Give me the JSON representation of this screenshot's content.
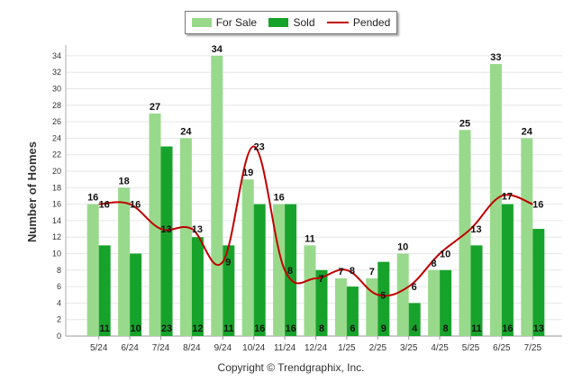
{
  "chart_data": {
    "type": "bar",
    "ylabel": "Number of Homes",
    "xlabel": "",
    "ylim": [
      0,
      35
    ],
    "yticks": [
      0,
      2,
      4,
      6,
      8,
      10,
      12,
      14,
      16,
      18,
      20,
      22,
      24,
      26,
      28,
      30,
      32,
      34
    ],
    "grid": true,
    "legend_position": "top-center",
    "categories": [
      "5/24",
      "6/24",
      "7/24",
      "8/24",
      "9/24",
      "10/24",
      "11/24",
      "12/24",
      "1/25",
      "2/25",
      "3/25",
      "4/25",
      "5/25",
      "6/25",
      "7/25"
    ],
    "series": [
      {
        "name": "For Sale",
        "type": "bar",
        "color": "#99d98c",
        "values": [
          16,
          18,
          27,
          24,
          34,
          19,
          16,
          11,
          7,
          7,
          10,
          8,
          25,
          33,
          24
        ]
      },
      {
        "name": "Sold",
        "type": "bar",
        "color": "#17a32b",
        "values": [
          11,
          10,
          23,
          12,
          11,
          16,
          16,
          8,
          6,
          9,
          4,
          8,
          11,
          16,
          13
        ]
      },
      {
        "name": "Pended",
        "type": "line",
        "color": "#c00000",
        "values": [
          16,
          16,
          13,
          13,
          9,
          23,
          8,
          7,
          8,
          5,
          6,
          10,
          13,
          17,
          16
        ]
      }
    ]
  },
  "footer": {
    "copyright": "Copyright © Trendgraphix, Inc."
  }
}
